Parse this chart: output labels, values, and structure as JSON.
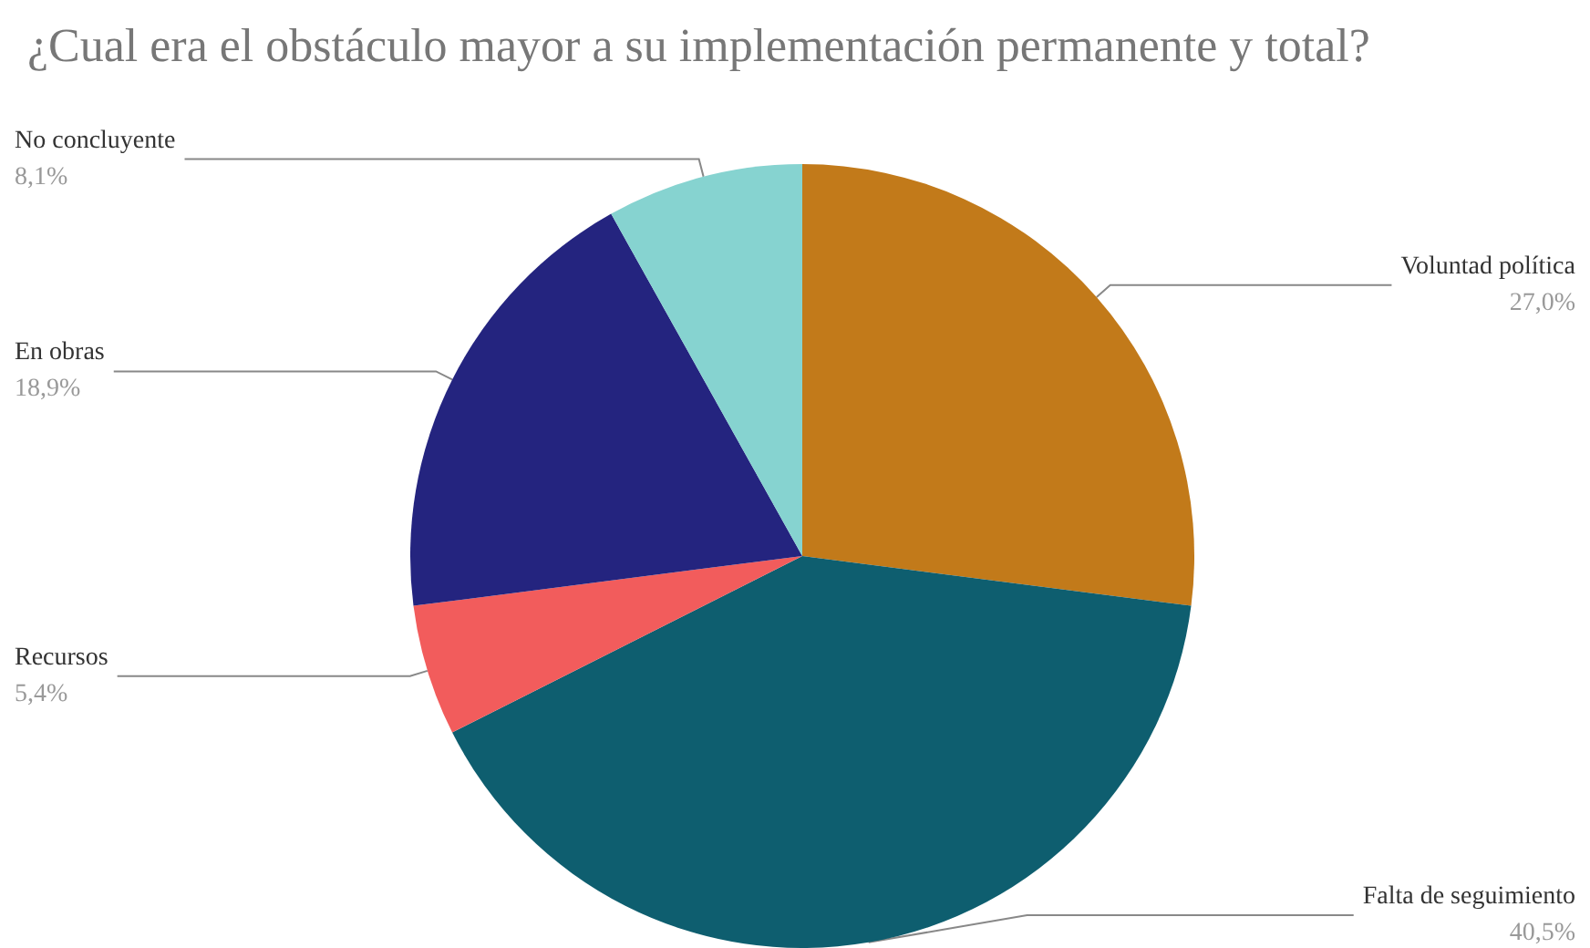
{
  "chart_data": {
    "type": "pie",
    "title": "¿Cual era el obstáculo mayor a su implementación permanente y total?",
    "categories": [
      "Voluntad política",
      "Falta de seguimiento",
      "Recursos",
      "En obras",
      "No concluyente"
    ],
    "values": [
      27.0,
      40.5,
      5.4,
      18.9,
      8.1
    ],
    "value_labels": [
      "27,0%",
      "40,5%",
      "5,4%",
      "18,9%",
      "8,1%"
    ],
    "colors": [
      "#c27a1a",
      "#0e5e6f",
      "#f25c5c",
      "#24247f",
      "#86d3d0"
    ],
    "legend": false
  }
}
